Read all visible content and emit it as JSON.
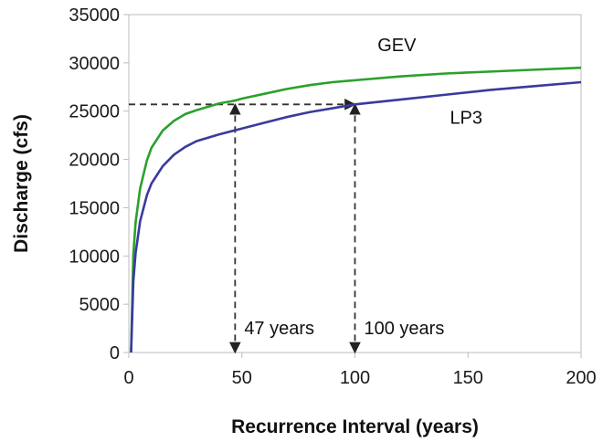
{
  "chart_data": {
    "type": "line",
    "xlabel": "Recurrence Interval (years)",
    "ylabel": "Discharge (cfs)",
    "xlim": [
      0,
      200
    ],
    "ylim": [
      0,
      35000
    ],
    "xticks": [
      0,
      50,
      100,
      150,
      200
    ],
    "yticks": [
      0,
      5000,
      10000,
      15000,
      20000,
      25000,
      30000,
      35000
    ],
    "grid": false,
    "legend": "none (series labeled directly on chart)",
    "series": [
      {
        "name": "GEV",
        "color": "#2ca02c",
        "x": [
          1,
          2,
          3,
          5,
          8,
          10,
          15,
          20,
          25,
          30,
          40,
          47,
          50,
          60,
          70,
          80,
          90,
          100,
          120,
          140,
          160,
          180,
          200
        ],
        "y": [
          0,
          10200,
          13500,
          17000,
          19900,
          21200,
          23000,
          24000,
          24700,
          25100,
          25800,
          26100,
          26300,
          26800,
          27300,
          27700,
          28000,
          28200,
          28600,
          28900,
          29100,
          29300,
          29500
        ]
      },
      {
        "name": "LP3",
        "color": "#3a3a9e",
        "x": [
          1,
          2,
          3,
          5,
          8,
          10,
          15,
          20,
          25,
          30,
          40,
          50,
          60,
          70,
          80,
          90,
          100,
          120,
          140,
          160,
          180,
          200
        ],
        "y": [
          0,
          7400,
          10300,
          13600,
          16300,
          17500,
          19300,
          20500,
          21300,
          21900,
          22600,
          23200,
          23800,
          24400,
          24900,
          25300,
          25700,
          26200,
          26700,
          27200,
          27600,
          28000
        ]
      }
    ],
    "annotations": {
      "reference_discharge": 25700,
      "markers": [
        {
          "x": 47,
          "label": "47 years"
        },
        {
          "x": 100,
          "label": "100 years"
        }
      ]
    }
  }
}
